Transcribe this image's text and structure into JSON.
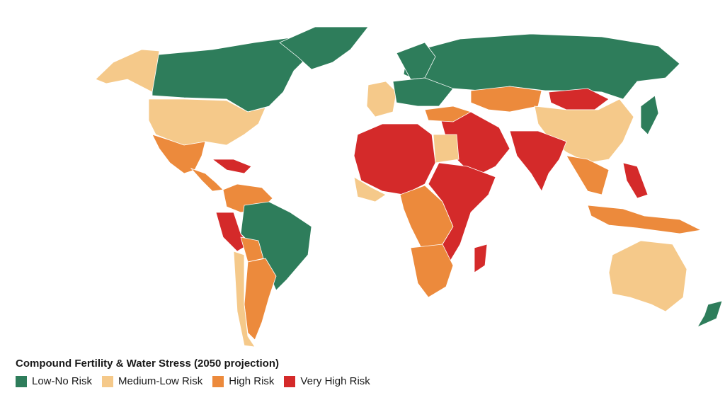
{
  "legend": {
    "title": "Compound Fertility & Water Stress (2050 projection)",
    "items": [
      {
        "key": "low",
        "label": "Low-No Risk",
        "color": "#2e7d5b"
      },
      {
        "key": "medium",
        "label": "Medium-Low Risk",
        "color": "#f5c98a"
      },
      {
        "key": "high",
        "label": "High Risk",
        "color": "#ec8a3c"
      },
      {
        "key": "very_high",
        "label": "Very High Risk",
        "color": "#d42a2a"
      }
    ]
  },
  "regions": [
    {
      "name": "Canada",
      "risk": "low"
    },
    {
      "name": "Alaska",
      "risk": "medium"
    },
    {
      "name": "Greenland",
      "risk": "low"
    },
    {
      "name": "United States",
      "risk": "medium"
    },
    {
      "name": "Mexico",
      "risk": "high"
    },
    {
      "name": "Central America",
      "risk": "high"
    },
    {
      "name": "Caribbean",
      "risk": "very_high"
    },
    {
      "name": "Colombia / Venezuela",
      "risk": "high"
    },
    {
      "name": "Brazil",
      "risk": "low"
    },
    {
      "name": "Peru",
      "risk": "very_high"
    },
    {
      "name": "Bolivia",
      "risk": "high"
    },
    {
      "name": "Argentina",
      "risk": "high"
    },
    {
      "name": "Chile",
      "risk": "medium"
    },
    {
      "name": "Russia",
      "risk": "low"
    },
    {
      "name": "Scandinavia",
      "risk": "low"
    },
    {
      "name": "Western Europe",
      "risk": "medium"
    },
    {
      "name": "Central Europe",
      "risk": "low"
    },
    {
      "name": "Kazakhstan",
      "risk": "high"
    },
    {
      "name": "Mongolia",
      "risk": "very_high"
    },
    {
      "name": "China",
      "risk": "medium"
    },
    {
      "name": "Japan",
      "risk": "low"
    },
    {
      "name": "India",
      "risk": "very_high"
    },
    {
      "name": "Middle East",
      "risk": "very_high"
    },
    {
      "name": "Turkey",
      "risk": "high"
    },
    {
      "name": "Southeast Asia",
      "risk": "high"
    },
    {
      "name": "Philippines",
      "risk": "very_high"
    },
    {
      "name": "Indonesia",
      "risk": "high"
    },
    {
      "name": "North Africa (Sahel)",
      "risk": "very_high"
    },
    {
      "name": "Egypt",
      "risk": "medium"
    },
    {
      "name": "West Africa coast",
      "risk": "medium"
    },
    {
      "name": "Central Africa",
      "risk": "high"
    },
    {
      "name": "East Africa",
      "risk": "very_high"
    },
    {
      "name": "Southern Africa",
      "risk": "high"
    },
    {
      "name": "Madagascar",
      "risk": "very_high"
    },
    {
      "name": "Australia",
      "risk": "medium"
    },
    {
      "name": "New Zealand",
      "risk": "low"
    }
  ]
}
